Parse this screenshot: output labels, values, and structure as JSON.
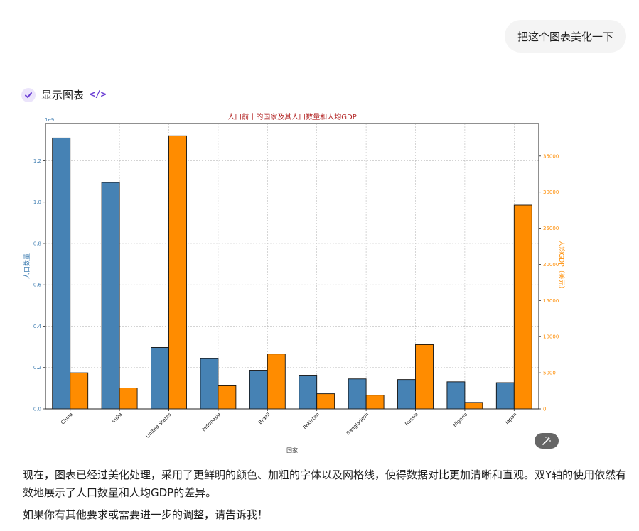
{
  "user_message": "把这个图表美化一下",
  "tool": {
    "label": "显示图表",
    "code_icon": "</>"
  },
  "colors": {
    "population": "#4682b4",
    "gdp": "#ff8c00",
    "title": "#b22222",
    "accent": "#6b3fd4"
  },
  "chart_data": {
    "type": "bar",
    "title": "人口前十的国家及其人口数量和人均GDP",
    "xlabel": "国家",
    "ylabel_left": "人口数量",
    "ylabel_right": "人均GDP（美元）",
    "left_axis_offset_label": "1e9",
    "categories": [
      "China",
      "India",
      "United States",
      "Indonesia",
      "Brazil",
      "Pakistan",
      "Bangladesh",
      "Russia",
      "Nigeria",
      "Japan"
    ],
    "series": [
      {
        "axis": "left",
        "ylim": [
          0,
          1.38
        ],
        "values": [
          1.31,
          1.095,
          0.297,
          0.243,
          0.187,
          0.163,
          0.145,
          0.142,
          0.131,
          0.127
        ],
        "ticks": [
          "0.0",
          "0.2",
          "0.4",
          "0.6",
          "0.8",
          "1.0",
          "1.2"
        ]
      },
      {
        "axis": "right",
        "ylim": [
          0,
          39500
        ],
        "values": [
          5000,
          2900,
          37800,
          3200,
          7600,
          2100,
          1900,
          8900,
          900,
          28200
        ],
        "ticks": [
          "0",
          "5000",
          "10000",
          "15000",
          "20000",
          "25000",
          "30000",
          "35000"
        ]
      }
    ],
    "grid": true
  },
  "reply": {
    "p1": "现在，图表已经过美化处理，采用了更鲜明的颜色、加粗的字体以及网格线，使得数据对比更加清晰和直观。双Y轴的使用依然有效地展示了人口数量和人均GDP的差异。",
    "p2": "如果你有其他要求或需要进一步的调整，请告诉我！"
  }
}
